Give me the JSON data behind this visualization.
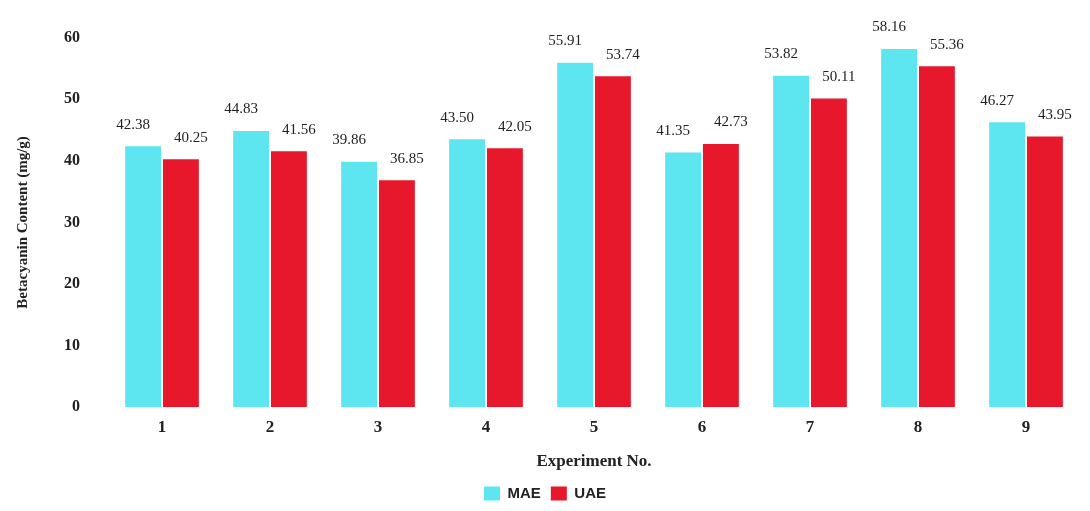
{
  "chart_data": {
    "type": "bar",
    "xlabel": "Experiment No.",
    "ylabel": "Betacyanin Content (mg/g)",
    "categories": [
      "1",
      "2",
      "3",
      "4",
      "5",
      "6",
      "7",
      "8",
      "9"
    ],
    "series": [
      {
        "name": "MAE",
        "color": "#5de6f0",
        "values": [
          42.38,
          44.83,
          39.86,
          43.5,
          55.91,
          41.35,
          53.82,
          58.16,
          46.27
        ],
        "value_labels": [
          "42.38",
          "44.83",
          "39.86",
          "43.50",
          "55.91",
          "41.35",
          "53.82",
          "58.16",
          "46.27"
        ]
      },
      {
        "name": "UAE",
        "color": "#e8182c",
        "values": [
          40.25,
          41.56,
          36.85,
          42.05,
          53.74,
          42.73,
          50.11,
          55.36,
          43.95
        ],
        "value_labels": [
          "40.25",
          "41.56",
          "36.85",
          "42.05",
          "53.74",
          "42.73",
          "50.11",
          "55.36",
          "43.95"
        ]
      }
    ],
    "ylim": [
      0,
      60
    ],
    "yticks": [
      0,
      10,
      20,
      30,
      40,
      50,
      60
    ],
    "grid": false,
    "legend": "bottom"
  }
}
